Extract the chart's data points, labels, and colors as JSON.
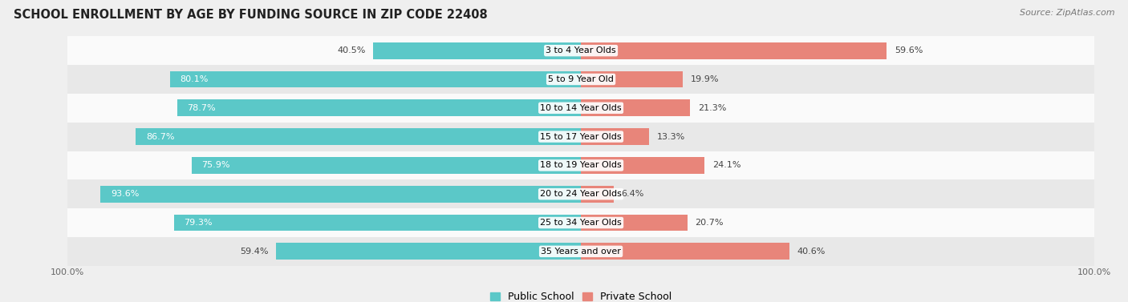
{
  "title": "SCHOOL ENROLLMENT BY AGE BY FUNDING SOURCE IN ZIP CODE 22408",
  "source": "Source: ZipAtlas.com",
  "categories": [
    "3 to 4 Year Olds",
    "5 to 9 Year Old",
    "10 to 14 Year Olds",
    "15 to 17 Year Olds",
    "18 to 19 Year Olds",
    "20 to 24 Year Olds",
    "25 to 34 Year Olds",
    "35 Years and over"
  ],
  "public_values": [
    40.5,
    80.1,
    78.7,
    86.7,
    75.9,
    93.6,
    79.3,
    59.4
  ],
  "private_values": [
    59.6,
    19.9,
    21.3,
    13.3,
    24.1,
    6.4,
    20.7,
    40.6
  ],
  "public_color": "#5BC8C8",
  "private_color": "#E8857A",
  "public_label": "Public School",
  "private_label": "Private School",
  "background_color": "#EFEFEF",
  "row_bg_light": "#FAFAFA",
  "row_bg_dark": "#E8E8E8",
  "xlim": [
    -100,
    100
  ],
  "title_fontsize": 10.5,
  "source_fontsize": 8,
  "label_fontsize": 8,
  "value_fontsize": 8,
  "legend_fontsize": 9,
  "pub_inside_threshold": 60,
  "priv_inside_threshold": 999
}
